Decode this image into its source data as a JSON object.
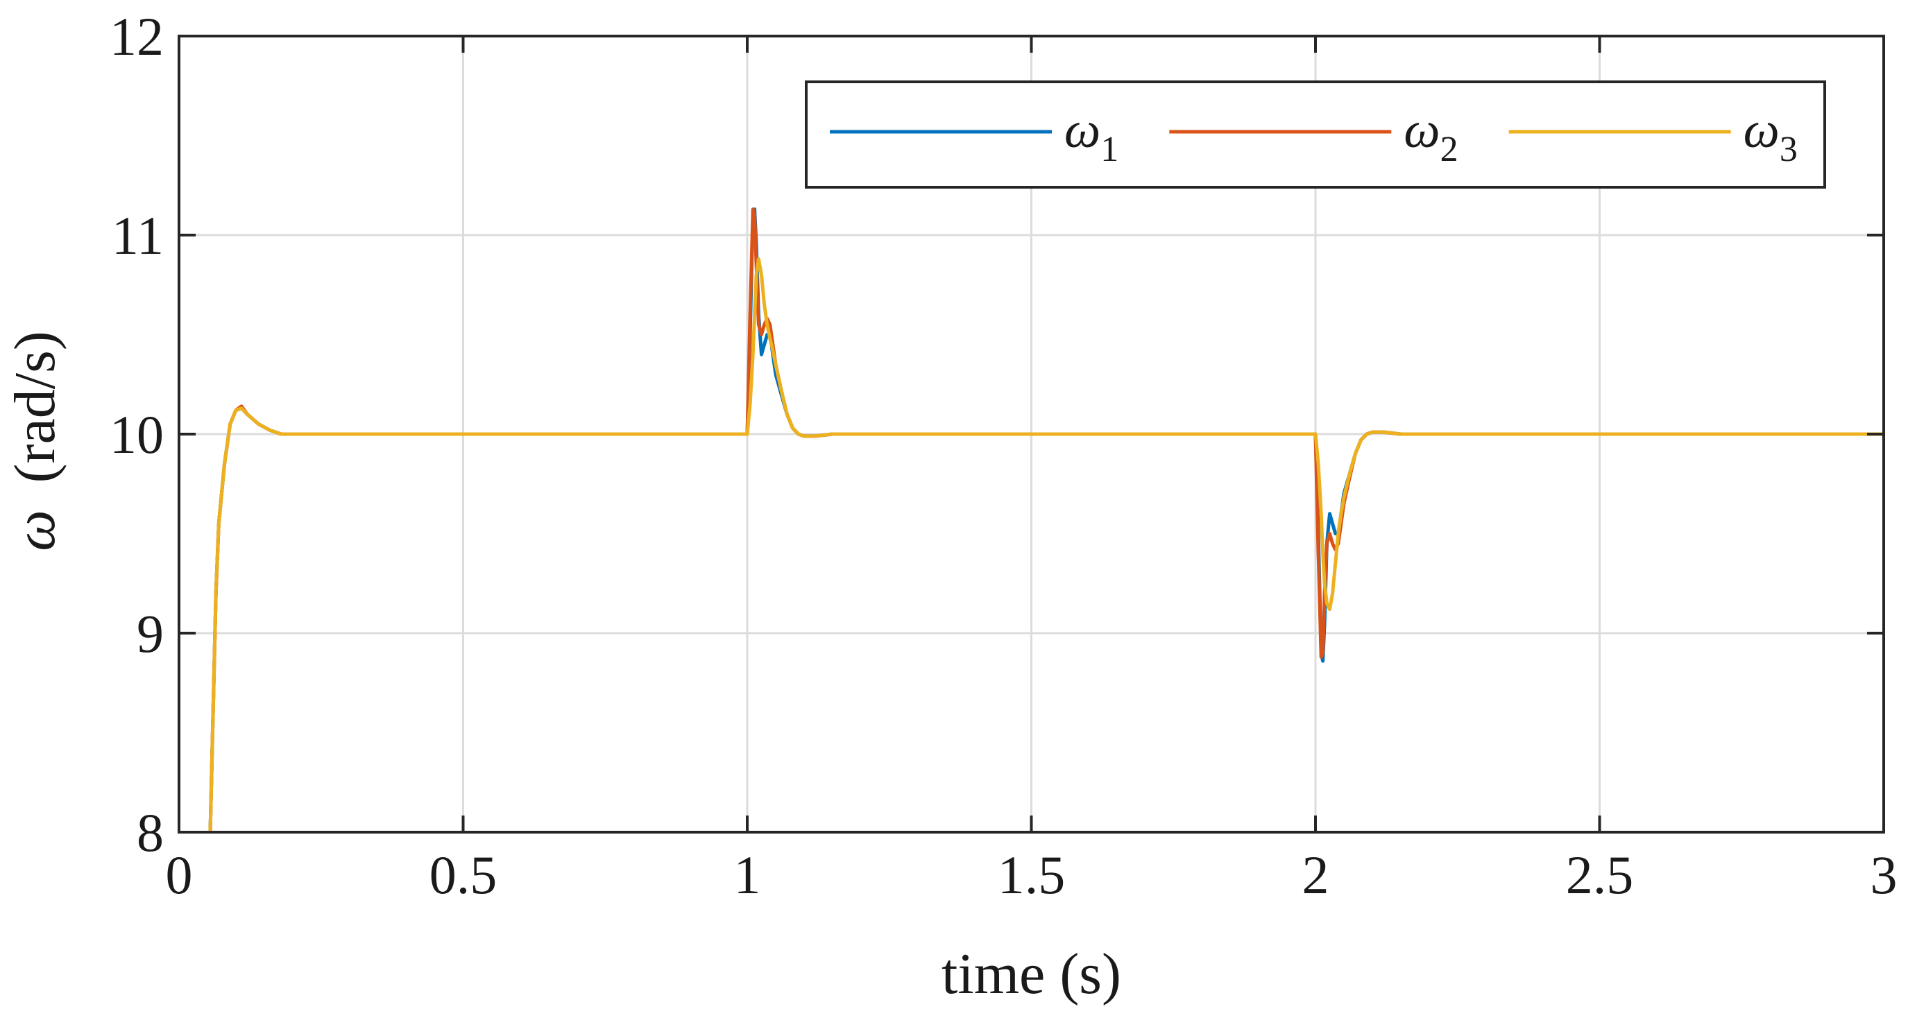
{
  "chart_data": {
    "type": "line",
    "xlabel": "time (s)",
    "ylabel_symbol": "ω",
    "ylabel_unit": "(rad/s)",
    "xlim": [
      0,
      3
    ],
    "ylim": [
      8,
      12
    ],
    "xticks": [
      0,
      0.5,
      1,
      1.5,
      2,
      2.5,
      3
    ],
    "xtick_labels": [
      "0",
      "0.5",
      "1",
      "1.5",
      "2",
      "2.5",
      "3"
    ],
    "yticks": [
      8,
      9,
      10,
      11,
      12
    ],
    "ytick_labels": [
      "8",
      "9",
      "10",
      "11",
      "12"
    ],
    "grid": true,
    "legend_position": "top-right",
    "series": [
      {
        "name": "ω1",
        "symbol": "ω",
        "subscript": "1",
        "color": "#0072BD",
        "x": [
          0.055,
          0.06,
          0.065,
          0.07,
          0.08,
          0.09,
          0.1,
          0.11,
          0.12,
          0.14,
          0.16,
          0.18,
          0.2,
          0.25,
          1.0,
          1.005,
          1.01,
          1.013,
          1.016,
          1.02,
          1.025,
          1.03,
          1.035,
          1.04,
          1.045,
          1.05,
          1.06,
          1.07,
          1.08,
          1.09,
          1.1,
          1.12,
          1.15,
          1.2,
          2.0,
          2.005,
          2.01,
          2.013,
          2.016,
          2.02,
          2.025,
          2.03,
          2.035,
          2.04,
          2.045,
          2.05,
          2.06,
          2.07,
          2.08,
          2.09,
          2.1,
          2.12,
          2.15,
          2.2,
          3.0
        ],
        "y": [
          8.0,
          8.6,
          9.2,
          9.55,
          9.85,
          10.05,
          10.12,
          10.13,
          10.1,
          10.05,
          10.02,
          10.0,
          10.0,
          10.0,
          10.0,
          10.5,
          11.1,
          11.13,
          10.95,
          10.6,
          10.4,
          10.45,
          10.5,
          10.5,
          10.4,
          10.3,
          10.2,
          10.1,
          10.03,
          10.0,
          9.99,
          9.99,
          10.0,
          10.0,
          10.0,
          9.5,
          8.9,
          8.86,
          9.05,
          9.45,
          9.6,
          9.55,
          9.5,
          9.5,
          9.6,
          9.7,
          9.8,
          9.9,
          9.97,
          10.0,
          10.01,
          10.01,
          10.0,
          10.0,
          10.0
        ]
      },
      {
        "name": "ω2",
        "symbol": "ω",
        "subscript": "2",
        "color": "#D95319",
        "x": [
          0.055,
          0.06,
          0.065,
          0.07,
          0.08,
          0.09,
          0.1,
          0.11,
          0.12,
          0.14,
          0.16,
          0.18,
          0.2,
          0.25,
          1.0,
          1.005,
          1.01,
          1.013,
          1.016,
          1.02,
          1.025,
          1.03,
          1.035,
          1.04,
          1.045,
          1.05,
          1.06,
          1.07,
          1.08,
          1.09,
          1.1,
          1.12,
          1.15,
          1.2,
          2.0,
          2.005,
          2.01,
          2.013,
          2.016,
          2.02,
          2.025,
          2.03,
          2.035,
          2.04,
          2.045,
          2.05,
          2.06,
          2.07,
          2.08,
          2.09,
          2.1,
          2.12,
          2.15,
          2.2,
          3.0
        ],
        "y": [
          8.0,
          8.6,
          9.2,
          9.55,
          9.85,
          10.05,
          10.12,
          10.14,
          10.1,
          10.05,
          10.02,
          10.0,
          10.0,
          10.0,
          10.0,
          10.6,
          11.13,
          11.1,
          10.85,
          10.55,
          10.5,
          10.55,
          10.58,
          10.55,
          10.45,
          10.35,
          10.22,
          10.1,
          10.03,
          10.0,
          9.99,
          9.99,
          10.0,
          10.0,
          10.0,
          9.4,
          8.88,
          8.9,
          9.2,
          9.45,
          9.5,
          9.45,
          9.42,
          9.45,
          9.55,
          9.65,
          9.78,
          9.9,
          9.97,
          10.0,
          10.01,
          10.01,
          10.0,
          10.0,
          10.0
        ]
      },
      {
        "name": "ω3",
        "symbol": "ω",
        "subscript": "3",
        "color": "#EDB120",
        "x": [
          0.055,
          0.06,
          0.065,
          0.07,
          0.08,
          0.09,
          0.1,
          0.11,
          0.12,
          0.14,
          0.16,
          0.18,
          0.2,
          0.25,
          1.0,
          1.005,
          1.01,
          1.013,
          1.016,
          1.02,
          1.025,
          1.03,
          1.035,
          1.04,
          1.045,
          1.05,
          1.06,
          1.07,
          1.08,
          1.09,
          1.1,
          1.12,
          1.15,
          1.2,
          2.0,
          2.005,
          2.01,
          2.013,
          2.016,
          2.02,
          2.025,
          2.03,
          2.035,
          2.04,
          2.045,
          2.05,
          2.06,
          2.07,
          2.08,
          2.09,
          2.1,
          2.12,
          2.15,
          2.2,
          3.0
        ],
        "y": [
          8.0,
          8.6,
          9.2,
          9.55,
          9.85,
          10.05,
          10.12,
          10.13,
          10.1,
          10.05,
          10.02,
          10.0,
          10.0,
          10.0,
          10.0,
          10.15,
          10.4,
          10.6,
          10.8,
          10.88,
          10.8,
          10.65,
          10.55,
          10.48,
          10.42,
          10.35,
          10.22,
          10.1,
          10.03,
          10.0,
          9.99,
          9.99,
          10.0,
          10.0,
          10.0,
          9.85,
          9.6,
          9.4,
          9.25,
          9.15,
          9.12,
          9.2,
          9.35,
          9.5,
          9.6,
          9.68,
          9.8,
          9.9,
          9.97,
          10.0,
          10.01,
          10.01,
          10.0,
          10.0,
          10.0
        ]
      }
    ]
  }
}
